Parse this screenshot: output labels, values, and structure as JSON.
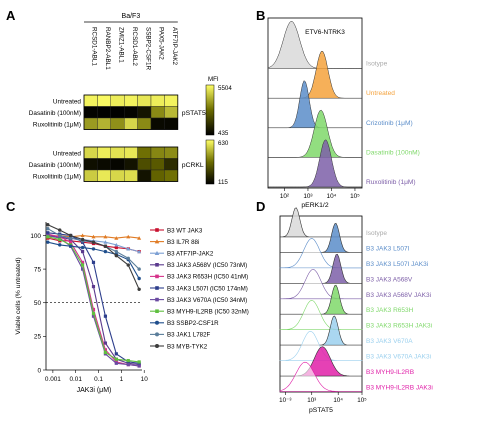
{
  "panel_letters": {
    "A": "A",
    "B": "B",
    "C": "C",
    "D": "D"
  },
  "colors": {
    "heat_low": "#000000",
    "heat_mid": "#6b6b00",
    "heat_high": "#ffff66",
    "isotype": "#d9d9d9",
    "untreated": "#f4a23c",
    "crizotinib": "#5b8dc9",
    "dasatinib": "#7fd86a",
    "ruxolitinib": "#7d5fa8"
  },
  "chart_data": [
    {
      "type": "heatmap",
      "title": "",
      "group_label": "Ba/F3",
      "columns": [
        "RCSD1-ABL1",
        "RANBP2-ABL1",
        "ZMIZ1-ABL1",
        "RCSD1-ABL2",
        "SSBP2-CSF1R",
        "PAX5-JAK2",
        "ATF7IP-JAK2"
      ],
      "blocks": [
        {
          "name": "pSTAT5",
          "rows": [
            "Untreated",
            "Dasatinib (100nM)",
            "Ruxolitinib (1μM)"
          ],
          "values": [
            [
              5300,
              5400,
              5200,
              5300,
              5100,
              5200,
              5300
            ],
            [
              500,
              480,
              470,
              520,
              900,
              3500,
              4300
            ],
            [
              3800,
              4200,
              3600,
              4800,
              3500,
              650,
              600
            ]
          ],
          "colorbar": {
            "label": "MFI",
            "max": 5504,
            "min": 435
          }
        },
        {
          "name": "pCRKL",
          "rows": [
            "Untreated",
            "Dasatinib (100nM)",
            "Ruxolitinib (1μM)"
          ],
          "values": [
            [
              560,
              600,
              580,
              590,
              380,
              420,
              430
            ],
            [
              150,
              140,
              130,
              160,
              300,
              330,
              220
            ],
            [
              540,
              590,
              560,
              570,
              160,
              350,
              380
            ]
          ],
          "colorbar": {
            "max": 630,
            "min": 115
          }
        }
      ]
    },
    {
      "type": "histogram",
      "title": "ETV6-NTRK3",
      "xlabel": "pERK1/2",
      "x_scale": "log",
      "x_ticks": [
        "10²",
        "10³",
        "10⁴",
        "10⁵"
      ],
      "tracks": [
        {
          "name": "Isotype",
          "center_log": 2.3,
          "width": 0.35
        },
        {
          "name": "Untreated",
          "center_log": 3.6,
          "width": 0.25
        },
        {
          "name": "Crizotinib (1μM)",
          "center_log": 2.85,
          "width": 0.2
        },
        {
          "name": "Dasatinib (100nM)",
          "center_log": 3.55,
          "width": 0.28
        },
        {
          "name": "Ruxolitinib (1μM)",
          "center_log": 3.75,
          "width": 0.25
        }
      ]
    },
    {
      "type": "line",
      "title": "",
      "xlabel": "JAK3i (μM)",
      "ylabel": "Viable cells (% untreated)",
      "x_scale": "log",
      "xlim": [
        0.0005,
        8
      ],
      "ylim": [
        0,
        110
      ],
      "x_ticks": [
        "0.001",
        "0.01",
        "0.1",
        "1",
        "10"
      ],
      "y_ticks": [
        0,
        25,
        50,
        75,
        100
      ],
      "reference_line": 50,
      "x": [
        0.0006,
        0.002,
        0.006,
        0.02,
        0.06,
        0.2,
        0.6,
        2,
        6
      ],
      "series": [
        {
          "name": "B3 WT JAK3",
          "marker": "square",
          "color": "#c8102e",
          "values": [
            98,
            96,
            96,
            95,
            94,
            92,
            91,
            90,
            88
          ]
        },
        {
          "name": "B3 IL7R 88i",
          "marker": "triangle",
          "color": "#e07b24",
          "values": [
            99,
            100,
            99,
            100,
            99,
            99,
            98,
            99,
            98
          ]
        },
        {
          "name": "B3 ATF7IP-JAK2",
          "marker": "triangle",
          "color": "#7b9fd3",
          "values": [
            100,
            99,
            98,
            97,
            96,
            95,
            93,
            90,
            88
          ]
        },
        {
          "name": "B3 JAK3 A568V (IC50 73nM)",
          "marker": "square",
          "color": "#5b3a8e",
          "values": [
            100,
            99,
            97,
            88,
            62,
            20,
            8,
            5,
            4
          ]
        },
        {
          "name": "B3 JAK3 R653H (IC50 41nM)",
          "marker": "square",
          "color": "#d6338a",
          "values": [
            101,
            99,
            95,
            80,
            45,
            15,
            6,
            4,
            3
          ]
        },
        {
          "name": "B3 JAK3 L507I (IC50 174nM)",
          "marker": "square",
          "color": "#2d3e8c",
          "values": [
            102,
            101,
            100,
            95,
            80,
            40,
            12,
            6,
            5
          ]
        },
        {
          "name": "B3 JAK3 V670A (IC50 34nM)",
          "marker": "square",
          "color": "#6a4aa1",
          "values": [
            100,
            98,
            92,
            75,
            40,
            12,
            5,
            4,
            3
          ]
        },
        {
          "name": "B3 MYH9-IL2RB (IC50 32nM)",
          "marker": "square",
          "color": "#5fbf3f",
          "values": [
            99,
            97,
            93,
            78,
            42,
            13,
            8,
            7,
            6
          ]
        },
        {
          "name": "B3 SSBP2-CSF1R",
          "marker": "circle",
          "color": "#1f4e8c",
          "values": [
            95,
            93,
            92,
            91,
            90,
            88,
            86,
            82,
            68
          ]
        },
        {
          "name": "B3 JAK1 L782F",
          "marker": "circle",
          "color": "#5a7d9a",
          "values": [
            105,
            100,
            98,
            96,
            95,
            92,
            88,
            83,
            75
          ]
        },
        {
          "name": "B3 MYB-TYK2",
          "marker": "circle",
          "color": "#3c3c3c",
          "values": [
            108,
            104,
            100,
            97,
            95,
            92,
            85,
            78,
            60
          ]
        }
      ]
    },
    {
      "type": "histogram",
      "title": "",
      "xlabel": "pSTAT5",
      "x_scale": "log",
      "x_ticks": [
        "10⁻³",
        "10³",
        "10⁴",
        "10⁵"
      ],
      "tracks": [
        {
          "name": "Isotype",
          "center_log": 2.4,
          "width": 0.15,
          "color": "#d9d9d9",
          "filled": true
        },
        {
          "name": "B3 JAK3 L507I",
          "center_log": 3.9,
          "width": 0.15,
          "color": "#5b8dc9",
          "filled": true
        },
        {
          "name": "B3 JAK3 L507I JAK3i",
          "center_log": 3.0,
          "width": 0.3,
          "color": "#5b8dc9",
          "filled": false
        },
        {
          "name": "B3 JAK3 A568V",
          "center_log": 3.95,
          "width": 0.15,
          "color": "#7d5fa8",
          "filled": true
        },
        {
          "name": "B3 JAK3 A568V JAK3i",
          "center_log": 3.05,
          "width": 0.3,
          "color": "#7d5fa8",
          "filled": false
        },
        {
          "name": "B3 JAK3 R653H",
          "center_log": 3.9,
          "width": 0.15,
          "color": "#7fd86a",
          "filled": true
        },
        {
          "name": "B3 JAK3 R653H JAK3i",
          "center_log": 3.0,
          "width": 0.3,
          "color": "#7fd86a",
          "filled": false
        },
        {
          "name": "B3 JAK3 V670A",
          "center_log": 3.85,
          "width": 0.15,
          "color": "#9bd0ee",
          "filled": true
        },
        {
          "name": "B3 JAK3 V670A JAK3i",
          "center_log": 2.95,
          "width": 0.3,
          "color": "#9bd0ee",
          "filled": false
        },
        {
          "name": "B3 MYH9-IL2RB",
          "center_log": 3.4,
          "width": 0.3,
          "color": "#e020a8",
          "filled": true
        },
        {
          "name": "B3 MYH9-IL2RB JAK3i",
          "center_log": 2.75,
          "width": 0.35,
          "color": "#e020a8",
          "filled": false
        }
      ]
    }
  ]
}
